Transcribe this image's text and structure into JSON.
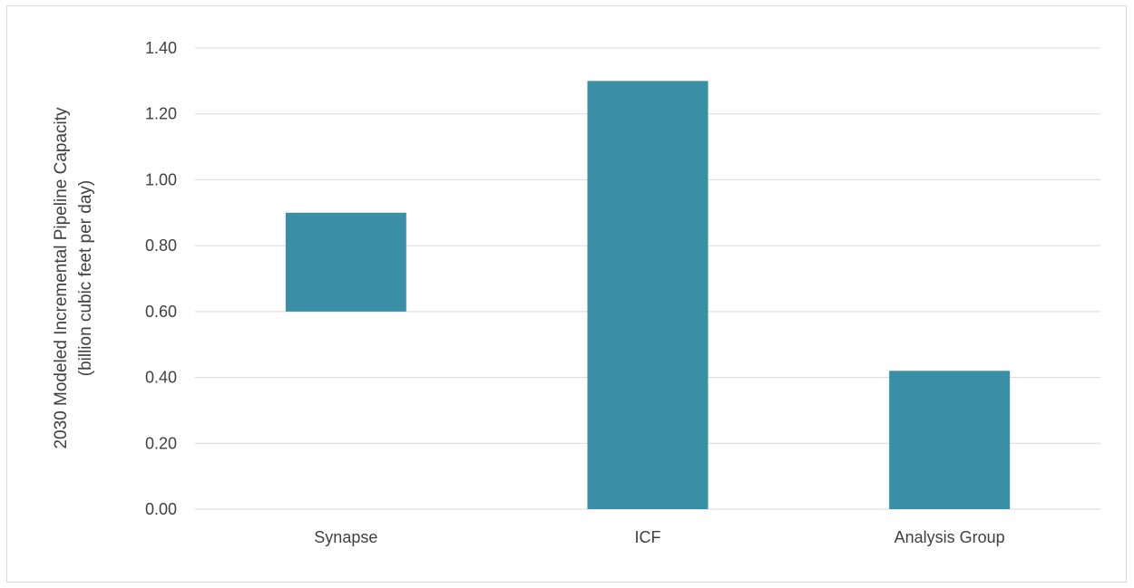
{
  "chart_data": {
    "type": "bar",
    "categories": [
      "Synapse",
      "ICF",
      "Analysis Group"
    ],
    "series": [
      {
        "ranges": [
          [
            0.6,
            0.9
          ],
          [
            0,
            1.3
          ],
          [
            0,
            0.42
          ]
        ]
      }
    ],
    "ylabel": [
      "2030 Modeled Incremental Pipeline Capacity",
      "(billion cubic feet per day)"
    ],
    "xlabel": "",
    "ylim": [
      0,
      1.4
    ],
    "yticks": [
      "0.00",
      "0.20",
      "0.40",
      "0.60",
      "0.80",
      "1.00",
      "1.20",
      "1.40"
    ],
    "grid": true,
    "legend": "none",
    "colors": {
      "bar": "#3a8fa6",
      "grid": "#d9d9d9",
      "text": "#404040"
    }
  }
}
